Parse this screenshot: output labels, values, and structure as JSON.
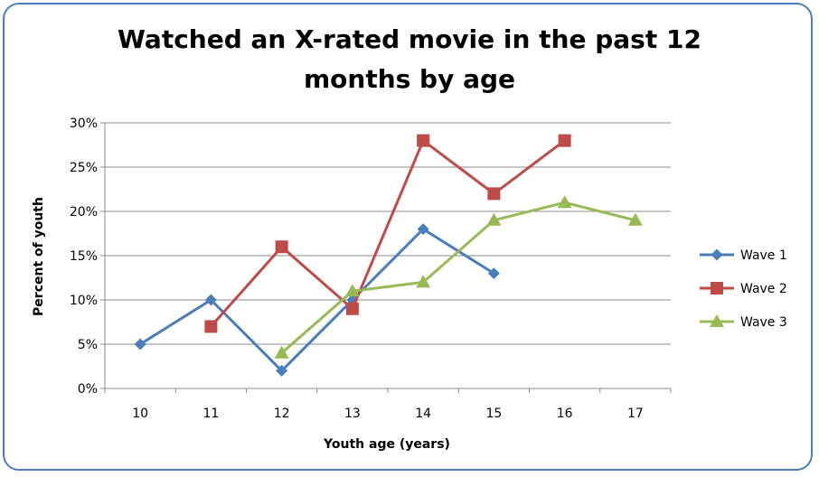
{
  "chart_data": {
    "type": "line",
    "title_line1": "Watched an X-rated movie in the past 12",
    "title_line2": "months by age",
    "xlabel": "Youth age (years)",
    "ylabel": "Percent of youth",
    "categories": [
      "10",
      "11",
      "12",
      "13",
      "14",
      "15",
      "16",
      "17"
    ],
    "y_ticks": [
      "0%",
      "5%",
      "10%",
      "15%",
      "20%",
      "25%",
      "30%"
    ],
    "ylim": [
      0,
      30
    ],
    "grid": true,
    "legend_position": "right",
    "series": [
      {
        "name": "Wave 1",
        "color": "#4a7ebb",
        "marker": "diamond",
        "values": [
          5,
          10,
          2,
          10,
          18,
          13,
          null,
          null
        ]
      },
      {
        "name": "Wave 2",
        "color": "#be4b48",
        "marker": "square",
        "values": [
          null,
          7,
          16,
          9,
          28,
          22,
          28,
          null
        ]
      },
      {
        "name": "Wave 3",
        "color": "#98b954",
        "marker": "triangle",
        "values": [
          null,
          null,
          4,
          11,
          12,
          19,
          21,
          19
        ]
      }
    ]
  }
}
